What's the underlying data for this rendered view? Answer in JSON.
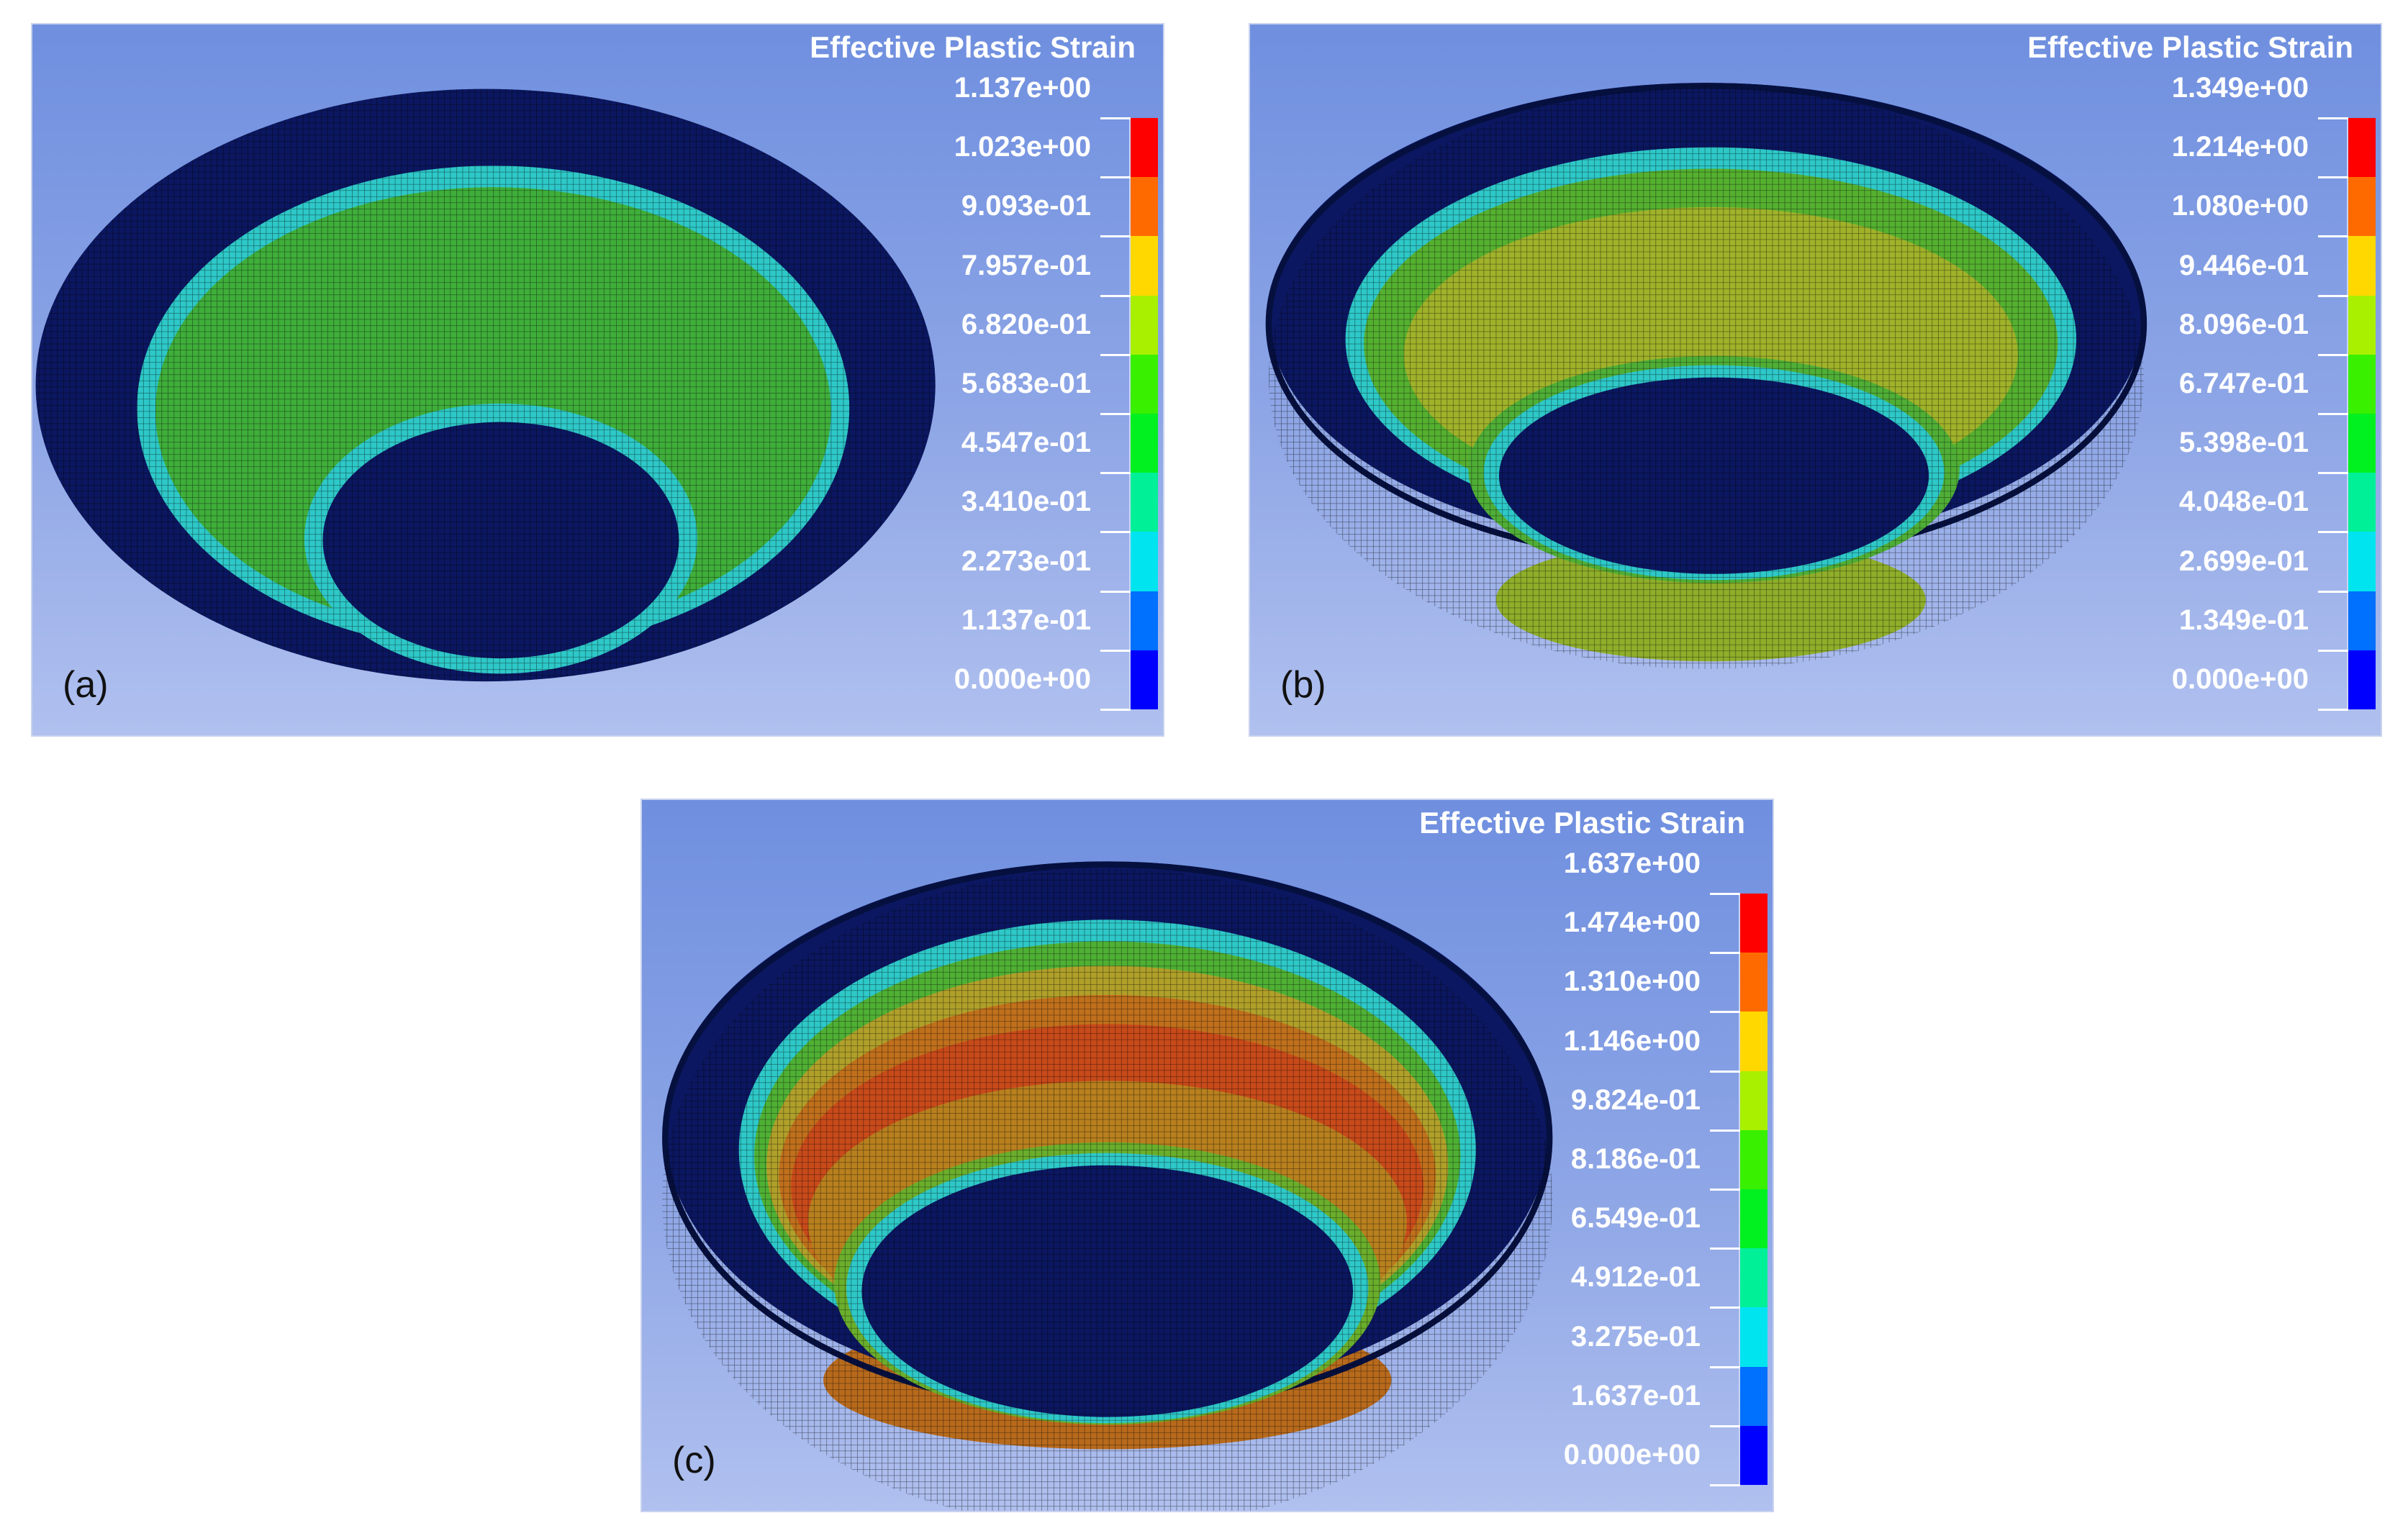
{
  "figure": {
    "segment_colors": [
      "#ff0000",
      "#ff6a00",
      "#ffd800",
      "#a8f000",
      "#38f000",
      "#00f020",
      "#00f098",
      "#00e4f0",
      "#0070ff",
      "#0000ff"
    ],
    "panels": [
      {
        "label": "(a)",
        "legend_title": "Effective Plastic Strain",
        "legend_values": [
          "1.137e+00",
          "1.023e+00",
          "9.093e-01",
          "7.957e-01",
          "6.820e-01",
          "5.683e-01",
          "4.547e-01",
          "3.410e-01",
          "2.273e-01",
          "1.137e-01",
          "0.000e+00"
        ]
      },
      {
        "label": "(b)",
        "legend_title": "Effective Plastic Strain",
        "legend_values": [
          "1.349e+00",
          "1.214e+00",
          "1.080e+00",
          "9.446e-01",
          "8.096e-01",
          "6.747e-01",
          "5.398e-01",
          "4.048e-01",
          "2.699e-01",
          "1.349e-01",
          "0.000e+00"
        ]
      },
      {
        "label": "(c)",
        "legend_title": "Effective Plastic Strain",
        "legend_values": [
          "1.637e+00",
          "1.474e+00",
          "1.310e+00",
          "1.146e+00",
          "9.824e-01",
          "8.186e-01",
          "6.549e-01",
          "4.912e-01",
          "3.275e-01",
          "1.637e-01",
          "0.000e+00"
        ]
      }
    ]
  }
}
